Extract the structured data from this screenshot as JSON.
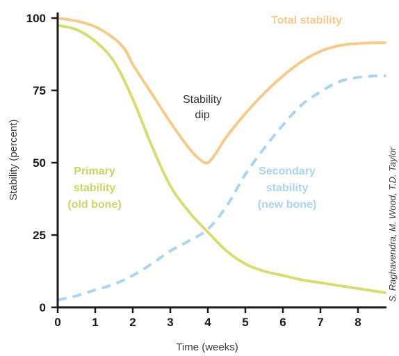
{
  "chart_data": {
    "type": "line",
    "xlabel": "Time (weeks)",
    "ylabel": "Stability (percent)",
    "xlim": [
      0,
      8.75
    ],
    "ylim": [
      0,
      100
    ],
    "x_ticks": [
      "0",
      "1",
      "2",
      "3",
      "4",
      "5",
      "6",
      "7",
      "8"
    ],
    "y_ticks": [
      "0",
      "25",
      "50",
      "75",
      "100"
    ],
    "grid": false,
    "series": [
      {
        "name": "Total stability",
        "color": "#f7c98a",
        "style": "solid",
        "x": [
          0,
          0.5,
          1,
          1.5,
          1.8,
          2,
          2.5,
          3,
          3.5,
          3.8,
          4,
          4.2,
          4.5,
          5,
          5.5,
          6,
          6.5,
          7,
          7.5,
          8,
          8.5,
          8.75
        ],
        "y": [
          100,
          99,
          97,
          93,
          89,
          84,
          74,
          64,
          55,
          51,
          50,
          53,
          59,
          67,
          74,
          80,
          85,
          88.5,
          90.5,
          91.2,
          91.5,
          91.5
        ]
      },
      {
        "name": "Primary stability (old bone)",
        "color": "#d7dd72",
        "style": "solid",
        "x": [
          0,
          0.5,
          1,
          1.5,
          2,
          2.5,
          3,
          3.5,
          4,
          4.5,
          5,
          5.5,
          6,
          6.5,
          7,
          7.5,
          8,
          8.5,
          8.75
        ],
        "y": [
          97.5,
          96,
          92,
          85,
          72,
          56,
          42,
          33,
          26,
          19.5,
          15,
          12.5,
          11,
          9.5,
          8.5,
          7.5,
          6.5,
          5.5,
          5
        ]
      },
      {
        "name": "Secondary stability (new bone)",
        "color": "#a9d5ee",
        "style": "dashed",
        "x": [
          0,
          0.5,
          1,
          1.5,
          2,
          2.5,
          3,
          3.5,
          4,
          4.5,
          5,
          5.5,
          6,
          6.5,
          7,
          7.5,
          8,
          8.5,
          8.75
        ],
        "y": [
          2.5,
          4,
          6,
          8,
          11,
          15,
          19.5,
          23,
          27,
          35,
          46,
          55,
          63,
          70,
          74.5,
          78,
          79.5,
          80,
          80
        ]
      }
    ],
    "annotations": [
      {
        "id": "total",
        "text": "Total stability",
        "color": "#f7c98a"
      },
      {
        "id": "dip",
        "text": [
          "Stability",
          "dip"
        ],
        "color": "#333333"
      },
      {
        "id": "primary",
        "text": [
          "Primary",
          "stability",
          "(old bone)"
        ],
        "color": "#cdd466"
      },
      {
        "id": "secondary",
        "text": [
          "Secondary",
          "stability",
          "(new bone)"
        ],
        "color": "#a9d5ee"
      }
    ],
    "credit": "S. Raghavendra, M. Wood, T.D. Taylor"
  }
}
